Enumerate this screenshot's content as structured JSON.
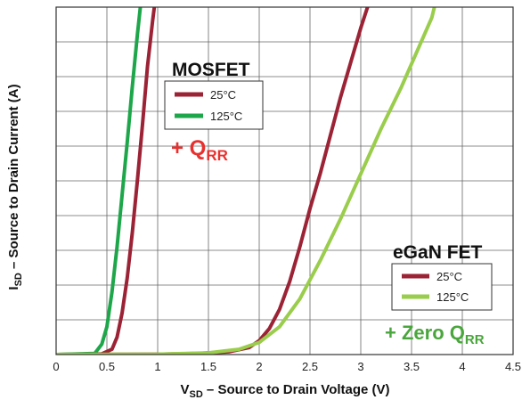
{
  "chart_data": {
    "type": "line",
    "xlabel": "V",
    "xlabel_sub": "SD",
    "xlabel_rest": " – Source to Drain Voltage (V)",
    "ylabel": "I",
    "ylabel_sub": "SD",
    "ylabel_rest": " – Source to Drain Current (A)",
    "xlim": [
      0,
      4.5
    ],
    "ylim": [
      0,
      10
    ],
    "x_ticks": [
      "0",
      "0.5",
      "1",
      "1.5",
      "2",
      "2.5",
      "3",
      "3.5",
      "4",
      "4.5"
    ],
    "grid": true,
    "colors": {
      "red": "#9b2335",
      "green": "#1ea64a",
      "light_green": "#9acd4c",
      "note_red": "#e8302e",
      "note_green": "#4aa63c"
    },
    "groups": [
      {
        "title": "MOSFET",
        "legend": [
          "25°C",
          "125°C"
        ],
        "note_prefix": "+ Q",
        "note_sub": "RR"
      },
      {
        "title": "eGaN FET",
        "legend": [
          "25°C",
          "125°C"
        ],
        "note_prefix": "+ Zero Q",
        "note_sub": "RR"
      }
    ],
    "series": [
      {
        "group": 0,
        "color": "red",
        "points": [
          [
            0,
            0
          ],
          [
            0.45,
            0.02
          ],
          [
            0.55,
            0.15
          ],
          [
            0.6,
            0.5
          ],
          [
            0.65,
            1.2
          ],
          [
            0.7,
            2.2
          ],
          [
            0.75,
            3.5
          ],
          [
            0.8,
            5.0
          ],
          [
            0.85,
            6.6
          ],
          [
            0.9,
            8.3
          ],
          [
            0.95,
            9.6
          ],
          [
            0.98,
            10.3
          ]
        ]
      },
      {
        "group": 0,
        "color": "green",
        "points": [
          [
            0,
            0
          ],
          [
            0.38,
            0.03
          ],
          [
            0.45,
            0.3
          ],
          [
            0.5,
            0.8
          ],
          [
            0.55,
            1.8
          ],
          [
            0.6,
            3.1
          ],
          [
            0.65,
            4.6
          ],
          [
            0.7,
            6.1
          ],
          [
            0.75,
            7.7
          ],
          [
            0.8,
            9.2
          ],
          [
            0.84,
            10.3
          ]
        ]
      },
      {
        "group": 1,
        "color": "red",
        "points": [
          [
            0,
            0
          ],
          [
            1.0,
            0.01
          ],
          [
            1.4,
            0.03
          ],
          [
            1.7,
            0.08
          ],
          [
            1.9,
            0.2
          ],
          [
            2.0,
            0.4
          ],
          [
            2.1,
            0.75
          ],
          [
            2.2,
            1.3
          ],
          [
            2.3,
            2.1
          ],
          [
            2.4,
            3.1
          ],
          [
            2.5,
            4.2
          ],
          [
            2.6,
            5.2
          ],
          [
            2.7,
            6.3
          ],
          [
            2.8,
            7.4
          ],
          [
            2.9,
            8.4
          ],
          [
            3.0,
            9.4
          ],
          [
            3.1,
            10.3
          ]
        ]
      },
      {
        "group": 1,
        "color": "light_green",
        "points": [
          [
            0,
            0
          ],
          [
            1.0,
            0.01
          ],
          [
            1.5,
            0.05
          ],
          [
            1.8,
            0.15
          ],
          [
            2.0,
            0.35
          ],
          [
            2.2,
            0.8
          ],
          [
            2.4,
            1.6
          ],
          [
            2.6,
            2.7
          ],
          [
            2.8,
            3.9
          ],
          [
            3.0,
            5.2
          ],
          [
            3.2,
            6.5
          ],
          [
            3.4,
            7.7
          ],
          [
            3.55,
            8.7
          ],
          [
            3.7,
            9.7
          ],
          [
            3.75,
            10.3
          ]
        ]
      }
    ]
  }
}
